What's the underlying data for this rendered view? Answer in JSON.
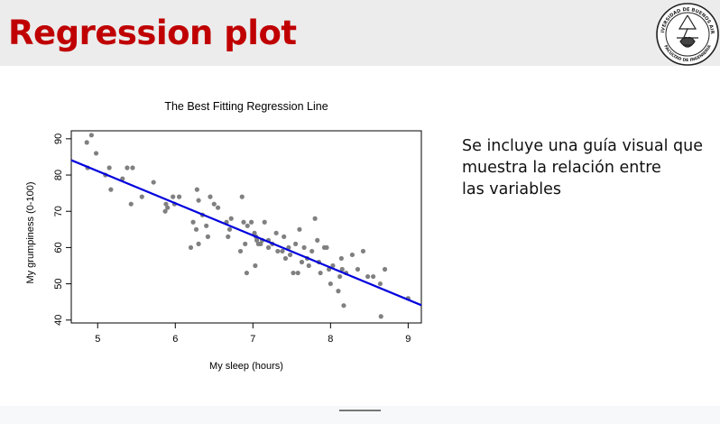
{
  "slide": {
    "title": "Regression plot",
    "description_lines": [
      "Se incluye una guía visual que",
      "muestra la relación entre",
      "las variables"
    ],
    "logo": {
      "name": "university-seal",
      "text_top": "UNIVERSIDAD DE BUENOS AIRES",
      "text_bottom": "FACULTAD DE INGENIERIA"
    }
  },
  "colors": {
    "title": "#c00000",
    "points": "#808080",
    "regression_line": "#0000dd",
    "header_bg": "#ececec"
  },
  "chart_data": {
    "type": "scatter",
    "title": "The Best Fitting Regression Line",
    "xlabel": "My sleep (hours)",
    "ylabel": "My grumpiness (0-100)",
    "xlim": [
      4.66,
      9.17
    ],
    "ylim": [
      39.2,
      92.2
    ],
    "xticks": [
      5,
      6,
      7,
      8,
      9
    ],
    "yticks": [
      40,
      50,
      60,
      70,
      80,
      90
    ],
    "grid": false,
    "regression_line": {
      "x": [
        4.66,
        9.17
      ],
      "y": [
        84.1,
        44.1
      ]
    },
    "points": [
      [
        4.86,
        89
      ],
      [
        4.92,
        91
      ],
      [
        4.98,
        86
      ],
      [
        4.87,
        82
      ],
      [
        5.1,
        80
      ],
      [
        5.15,
        82
      ],
      [
        5.17,
        76
      ],
      [
        5.32,
        79
      ],
      [
        5.38,
        82
      ],
      [
        5.45,
        82
      ],
      [
        5.43,
        72
      ],
      [
        5.57,
        74
      ],
      [
        5.72,
        78
      ],
      [
        5.87,
        70
      ],
      [
        5.88,
        72
      ],
      [
        5.9,
        71
      ],
      [
        5.97,
        74
      ],
      [
        6.05,
        74
      ],
      [
        5.99,
        72
      ],
      [
        6.2,
        60
      ],
      [
        6.23,
        67
      ],
      [
        6.27,
        65
      ],
      [
        6.28,
        76
      ],
      [
        6.3,
        73
      ],
      [
        6.3,
        61
      ],
      [
        6.35,
        69
      ],
      [
        6.4,
        66
      ],
      [
        6.42,
        63
      ],
      [
        6.45,
        74
      ],
      [
        6.5,
        72
      ],
      [
        6.55,
        71
      ],
      [
        6.66,
        67
      ],
      [
        6.68,
        63
      ],
      [
        6.7,
        65
      ],
      [
        6.72,
        68
      ],
      [
        6.86,
        74
      ],
      [
        6.88,
        67
      ],
      [
        6.9,
        61
      ],
      [
        6.93,
        66
      ],
      [
        6.98,
        67
      ],
      [
        6.84,
        59
      ],
      [
        6.92,
        53
      ],
      [
        7.02,
        64
      ],
      [
        7.04,
        63
      ],
      [
        7.05,
        62
      ],
      [
        7.07,
        61
      ],
      [
        7.1,
        61
      ],
      [
        7.12,
        62
      ],
      [
        7.15,
        67
      ],
      [
        7.2,
        62
      ],
      [
        7.2,
        60
      ],
      [
        7.25,
        61
      ],
      [
        7.03,
        55
      ],
      [
        7.3,
        64
      ],
      [
        7.32,
        59
      ],
      [
        7.38,
        59
      ],
      [
        7.4,
        63
      ],
      [
        7.42,
        57
      ],
      [
        7.46,
        60
      ],
      [
        7.48,
        58
      ],
      [
        7.52,
        53
      ],
      [
        7.55,
        61
      ],
      [
        7.58,
        53
      ],
      [
        7.6,
        65
      ],
      [
        7.63,
        56
      ],
      [
        7.66,
        60
      ],
      [
        7.7,
        57
      ],
      [
        7.72,
        55
      ],
      [
        7.76,
        59
      ],
      [
        7.8,
        68
      ],
      [
        7.83,
        62
      ],
      [
        7.85,
        56
      ],
      [
        7.87,
        53
      ],
      [
        7.92,
        60
      ],
      [
        7.95,
        60
      ],
      [
        7.98,
        54
      ],
      [
        8.0,
        50
      ],
      [
        8.03,
        55
      ],
      [
        8.1,
        48
      ],
      [
        8.12,
        52
      ],
      [
        8.14,
        57
      ],
      [
        8.15,
        54
      ],
      [
        8.17,
        44
      ],
      [
        8.2,
        53
      ],
      [
        8.28,
        58
      ],
      [
        8.35,
        54
      ],
      [
        8.42,
        59
      ],
      [
        8.48,
        52
      ],
      [
        8.55,
        52
      ],
      [
        8.64,
        50
      ],
      [
        8.65,
        41
      ],
      [
        8.7,
        54
      ],
      [
        9.0,
        46
      ]
    ]
  }
}
